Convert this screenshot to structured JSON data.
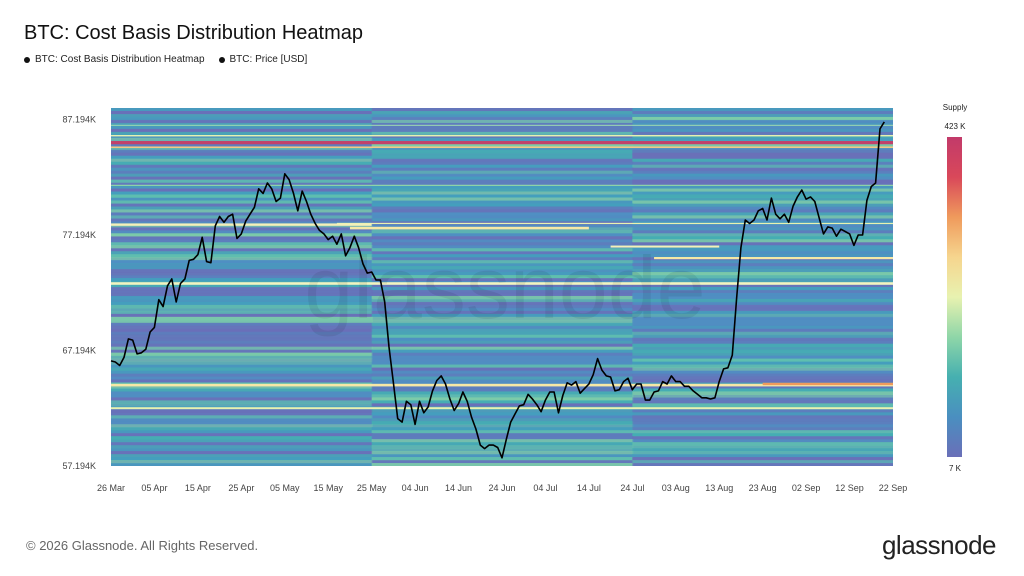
{
  "title": "BTC: Cost Basis Distribution Heatmap",
  "legend": [
    {
      "label": "BTC: Cost Basis Distribution Heatmap",
      "color": "#111111"
    },
    {
      "label": "BTC: Price [USD]",
      "color": "#111111"
    }
  ],
  "footer": "© 2026 Glassnode. All Rights Reserved.",
  "brand": "glassnode",
  "watermark": "glassnode",
  "chart_data": {
    "type": "heatmap",
    "x_tick_labels": [
      "26 Mar",
      "05 Apr",
      "15 Apr",
      "25 Apr",
      "05 May",
      "15 May",
      "25 May",
      "04 Jun",
      "14 Jun",
      "24 Jun",
      "04 Jul",
      "14 Jul",
      "24 Jul",
      "03 Aug",
      "13 Aug",
      "23 Aug",
      "02 Sep",
      "12 Sep",
      "22 Sep"
    ],
    "y_tick_labels": [
      "87.194K",
      "77.194K",
      "67.194K",
      "57.194K"
    ],
    "y_ticks": [
      87194,
      77194,
      67194,
      57194
    ],
    "ylim": [
      57194,
      88200
    ],
    "x_range_days": [
      0,
      180
    ],
    "colorbar": {
      "title": "Supply",
      "max_label": "423 K",
      "min_label": "7 K",
      "colors": [
        "#6a6fb8",
        "#4a8fc0",
        "#46b0b0",
        "#8fd6a8",
        "#e8f2b0",
        "#f6d58e",
        "#ef9a5c",
        "#d9485a",
        "#c23a6a"
      ]
    },
    "price_series": {
      "name": "BTC: Price [USD]",
      "x": [
        0,
        1,
        2,
        3,
        4,
        5,
        6,
        7,
        8,
        9,
        10,
        11,
        12,
        13,
        14,
        15,
        16,
        17,
        18,
        19,
        20,
        21,
        22,
        23,
        24,
        25,
        26,
        27,
        28,
        29,
        30,
        31,
        32,
        33,
        34,
        35,
        36,
        37,
        38,
        39,
        40,
        41,
        42,
        43,
        44,
        45,
        46,
        47,
        48,
        49,
        50,
        51,
        52,
        53,
        54,
        55,
        56,
        57,
        58,
        59,
        60,
        61,
        62,
        63,
        64,
        65,
        66,
        67,
        68,
        69,
        70,
        71,
        72,
        73,
        74,
        75,
        76,
        77,
        78,
        79,
        80,
        81,
        82,
        83,
        84,
        85,
        86,
        87,
        88,
        89,
        90,
        91,
        92,
        93,
        94,
        95,
        96,
        97,
        98,
        99,
        100,
        101,
        102,
        103,
        104,
        105,
        106,
        107,
        108,
        109,
        110,
        111,
        112,
        113,
        114,
        115,
        116,
        117,
        118,
        119,
        120,
        121,
        122,
        123,
        124,
        125,
        126,
        127,
        128,
        129,
        130,
        131,
        132,
        133,
        134,
        135,
        136,
        137,
        138,
        139,
        140,
        141,
        142,
        143,
        144,
        145,
        146,
        147,
        148,
        149,
        150,
        151,
        152,
        153,
        154,
        155,
        156,
        157,
        158,
        159,
        160,
        161,
        162,
        163,
        164,
        165,
        166,
        167,
        168,
        169,
        170,
        171,
        172,
        173,
        174,
        175,
        176,
        177,
        178,
        179,
        180
      ],
      "y": [
        66300,
        66200,
        65900,
        66600,
        68200,
        68100,
        66900,
        67000,
        67300,
        68800,
        69200,
        71600,
        71000,
        72800,
        73400,
        71400,
        73000,
        73400,
        75000,
        75100,
        75500,
        77000,
        74900,
        74800,
        78000,
        78800,
        78300,
        78800,
        79000,
        76900,
        77300,
        78400,
        79000,
        79600,
        81200,
        80800,
        81700,
        81200,
        80100,
        80400,
        82500,
        82000,
        80800,
        79300,
        81000,
        80100,
        79000,
        78200,
        77600,
        77300,
        76800,
        77100,
        76400,
        77300,
        75400,
        76100,
        77100,
        76100,
        74700,
        73900,
        74000,
        73300,
        73300,
        71400,
        67500,
        64400,
        61300,
        61000,
        62800,
        62500,
        60800,
        62800,
        61800,
        62300,
        63700,
        64600,
        65000,
        64300,
        63000,
        62000,
        62600,
        63600,
        62800,
        61400,
        60400,
        59000,
        58700,
        59000,
        59000,
        58800,
        57900,
        59500,
        61000,
        61700,
        62400,
        62500,
        63400,
        63000,
        62500,
        61900,
        62900,
        63600,
        63600,
        61800,
        63300,
        64400,
        64200,
        64500,
        63500,
        63900,
        64300,
        65100,
        66500,
        65500,
        65000,
        64900,
        63700,
        63800,
        64500,
        64800,
        63800,
        64300,
        64300,
        62900,
        62900,
        63600,
        63700,
        64500,
        64300,
        65000,
        64500,
        64500,
        64100,
        64100,
        63700,
        63400,
        63100,
        63100,
        63000,
        63100,
        64500,
        65600,
        65700,
        66800,
        71700,
        76100,
        78500,
        78200,
        78500,
        79300,
        79500,
        78500,
        80400,
        79000,
        78600,
        79000,
        78300,
        79700,
        80500,
        81100,
        80300,
        80500,
        80100,
        78700,
        77300,
        77900,
        77800,
        77100,
        77700,
        77500,
        77300,
        76300,
        77200,
        77200,
        80200,
        81400,
        81700,
        86400,
        87000
      ]
    }
  }
}
